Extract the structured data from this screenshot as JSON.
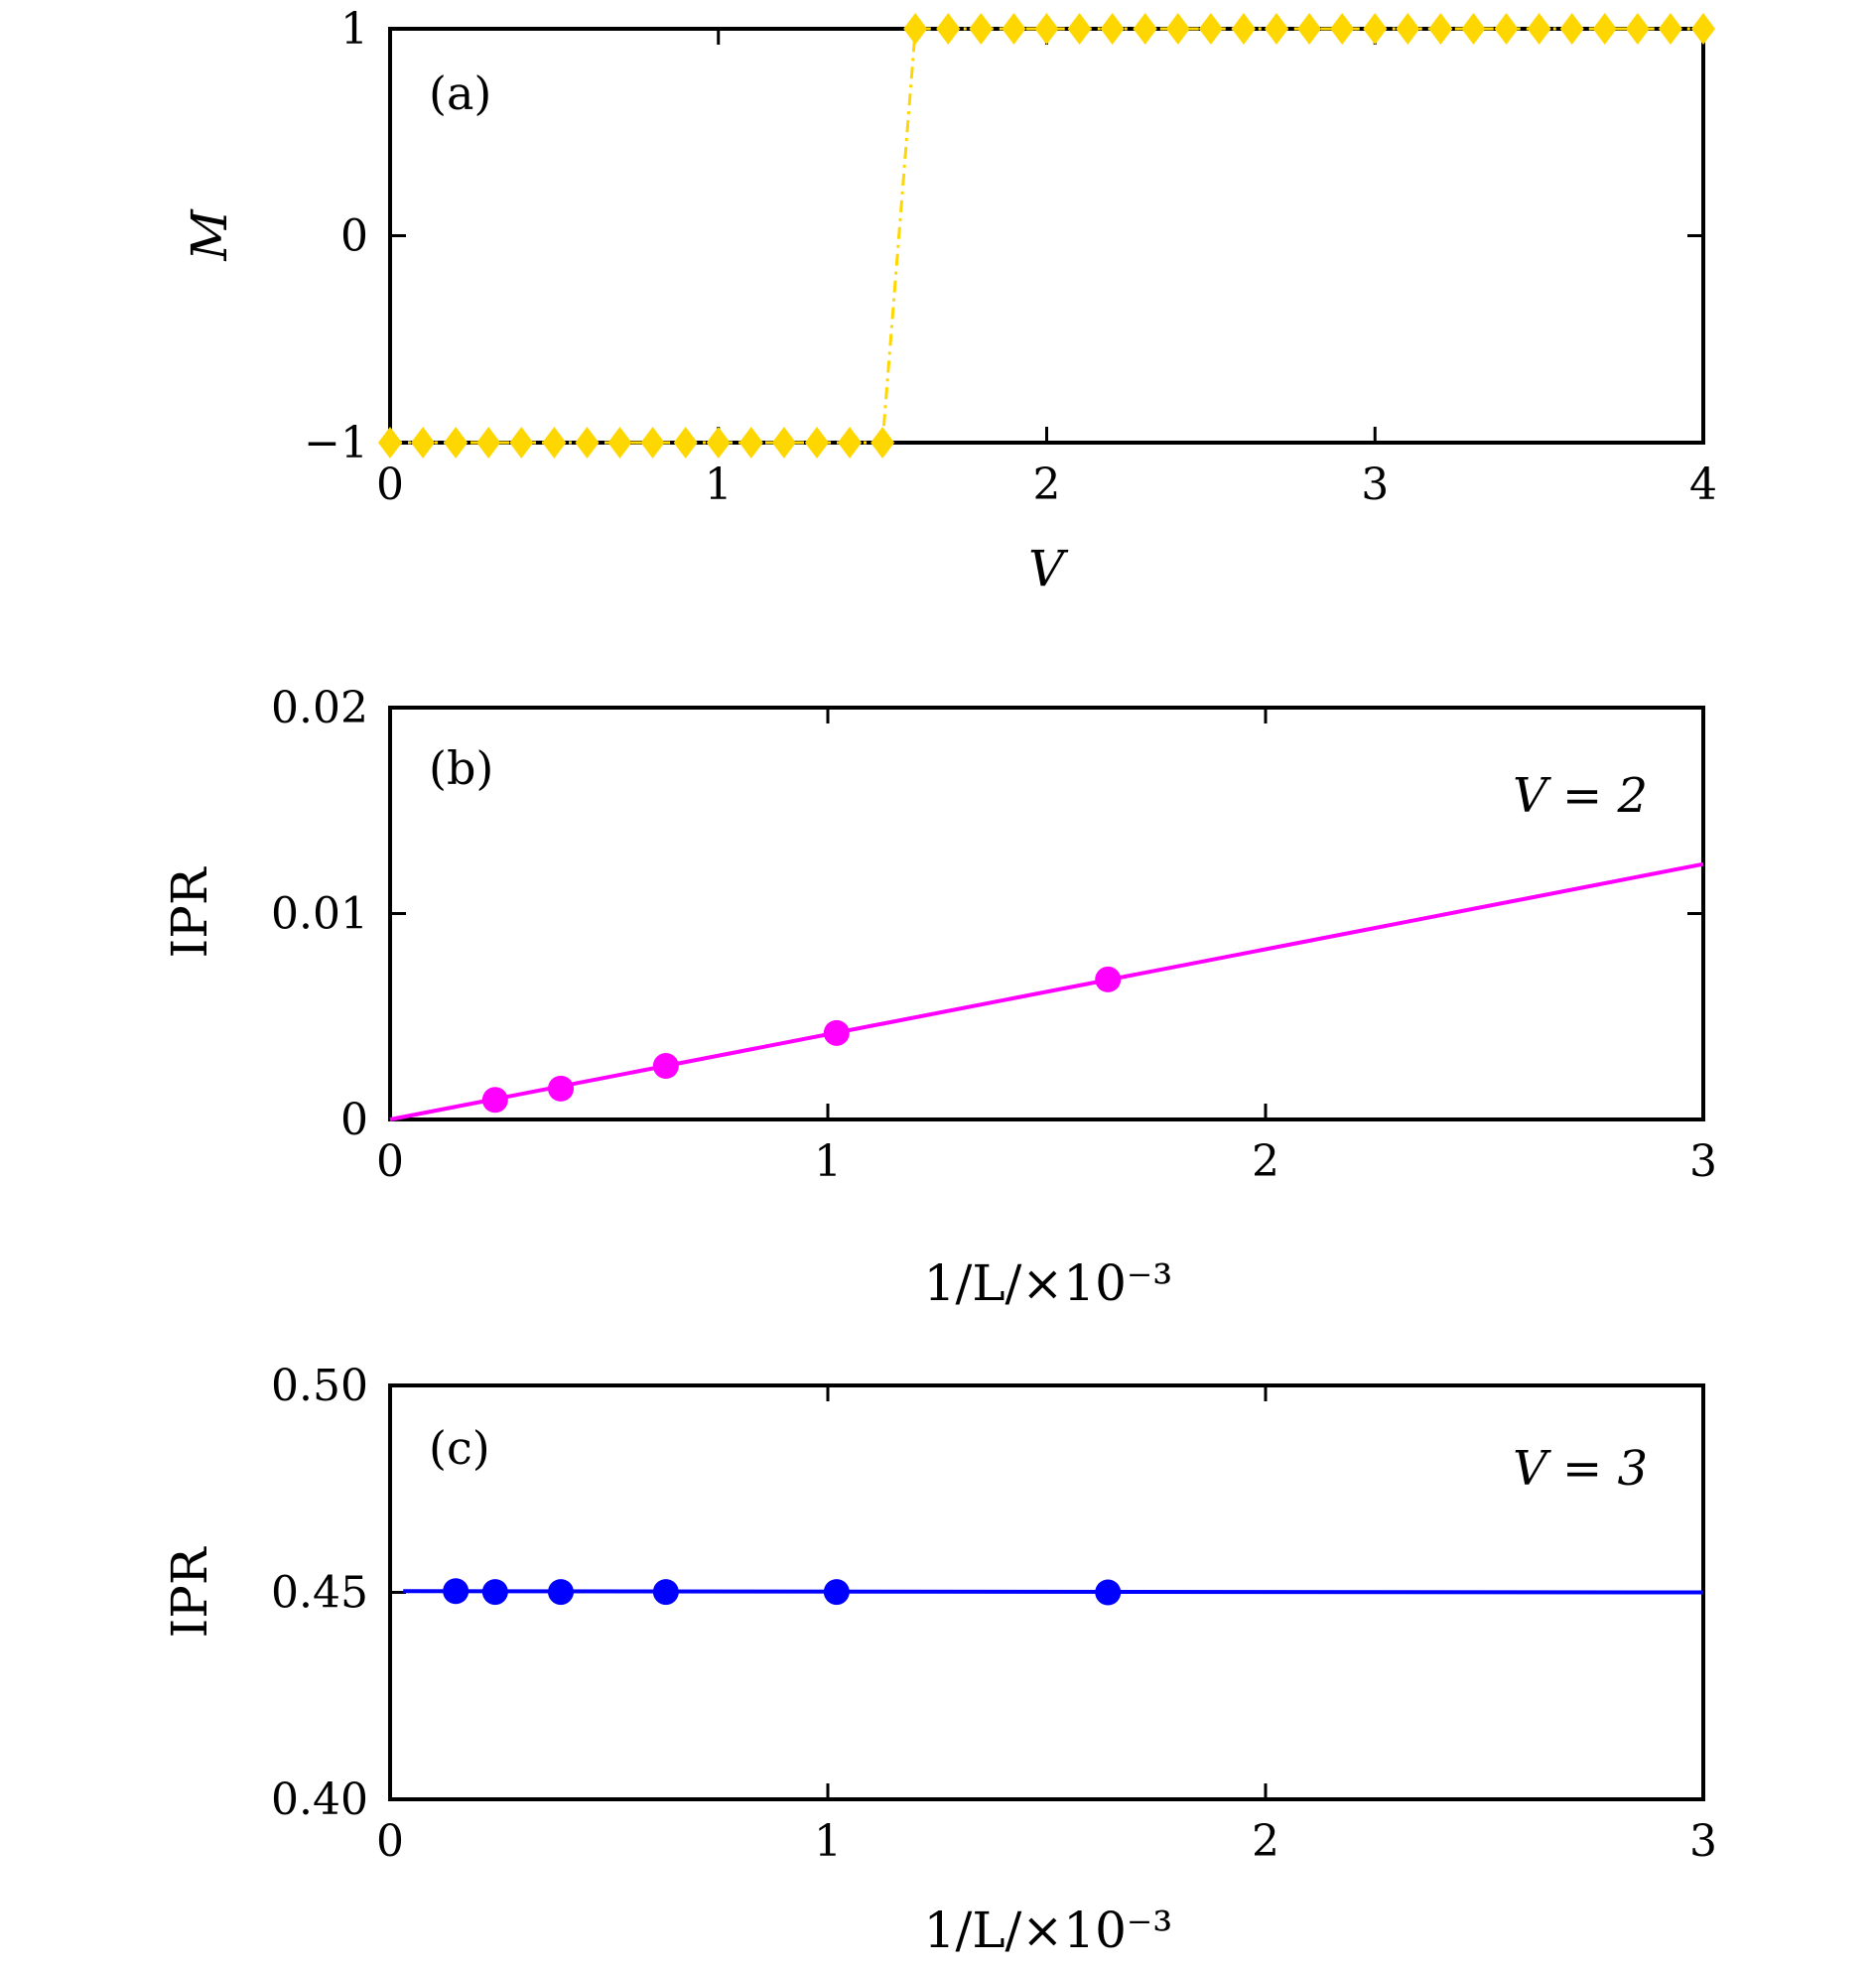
{
  "chart_data": [
    {
      "type": "line",
      "panel_label": "(a)",
      "xlabel": "V",
      "ylabel": "M",
      "xlim": [
        0,
        4
      ],
      "ylim": [
        -1,
        1
      ],
      "xticks": [
        0,
        1,
        2,
        3,
        4
      ],
      "xtick_labels": [
        "0",
        "1",
        "2",
        "3",
        "4"
      ],
      "yticks": [
        -1,
        0,
        1
      ],
      "ytick_labels": [
        "−1",
        "0",
        "1"
      ],
      "grid": false,
      "series": [
        {
          "color": "#FFD700",
          "line_style": "dash-dot",
          "marker": "diamond",
          "x": [
            0,
            0.1,
            0.2,
            0.3,
            0.4,
            0.5,
            0.6,
            0.7,
            0.8,
            0.9,
            1.0,
            1.1,
            1.2,
            1.3,
            1.4,
            1.5,
            1.6,
            1.7,
            1.8,
            1.9,
            2.0,
            2.1,
            2.2,
            2.3,
            2.4,
            2.5,
            2.6,
            2.7,
            2.8,
            2.9,
            3.0,
            3.1,
            3.2,
            3.3,
            3.4,
            3.5,
            3.6,
            3.7,
            3.8,
            3.9,
            4.0
          ],
          "y": [
            -1,
            -1,
            -1,
            -1,
            -1,
            -1,
            -1,
            -1,
            -1,
            -1,
            -1,
            -1,
            -1,
            -1,
            -1,
            -1,
            1,
            1,
            1,
            1,
            1,
            1,
            1,
            1,
            1,
            1,
            1,
            1,
            1,
            1,
            1,
            1,
            1,
            1,
            1,
            1,
            1,
            1,
            1,
            1,
            1
          ]
        }
      ]
    },
    {
      "type": "scatter",
      "panel_label": "(b)",
      "annotation": "V = 2",
      "xlabel": "1/L/×10⁻³",
      "ylabel": "IPR",
      "xlim": [
        0,
        3
      ],
      "ylim": [
        0,
        0.02
      ],
      "xticks": [
        0,
        1,
        2,
        3
      ],
      "xtick_labels": [
        "0",
        "1",
        "2",
        "3"
      ],
      "yticks": [
        0,
        0.01,
        0.02
      ],
      "ytick_labels": [
        "0",
        "0.01",
        "0.02"
      ],
      "grid": false,
      "series": [
        {
          "color": "#FF00FF",
          "marker": "circle",
          "x": [
            0.24,
            0.39,
            0.63,
            1.02,
            1.64
          ],
          "y": [
            0.00095,
            0.0015,
            0.0026,
            0.0042,
            0.0068
          ]
        }
      ],
      "fit_line": {
        "color": "#FF00FF",
        "x": [
          0,
          3
        ],
        "y": [
          0,
          0.0124
        ]
      }
    },
    {
      "type": "scatter",
      "panel_label": "(c)",
      "annotation": "V = 3",
      "xlabel": "1/L/×10⁻³",
      "ylabel": "IPR",
      "xlim": [
        0,
        3
      ],
      "ylim": [
        0.4,
        0.5
      ],
      "xticks": [
        0,
        1,
        2,
        3
      ],
      "xtick_labels": [
        "0",
        "1",
        "2",
        "3"
      ],
      "yticks": [
        0.4,
        0.45,
        0.5
      ],
      "ytick_labels": [
        "0.40",
        "0.45",
        "0.50"
      ],
      "grid": false,
      "series": [
        {
          "color": "#0000FF",
          "marker": "circle",
          "x": [
            0.15,
            0.24,
            0.39,
            0.63,
            1.02,
            1.64
          ],
          "y": [
            0.4503,
            0.4501,
            0.4501,
            0.4501,
            0.4501,
            0.45
          ]
        }
      ],
      "fit_line": {
        "color": "#0000FF",
        "x": [
          0.03,
          3
        ],
        "y": [
          0.4503,
          0.45
        ]
      }
    }
  ]
}
